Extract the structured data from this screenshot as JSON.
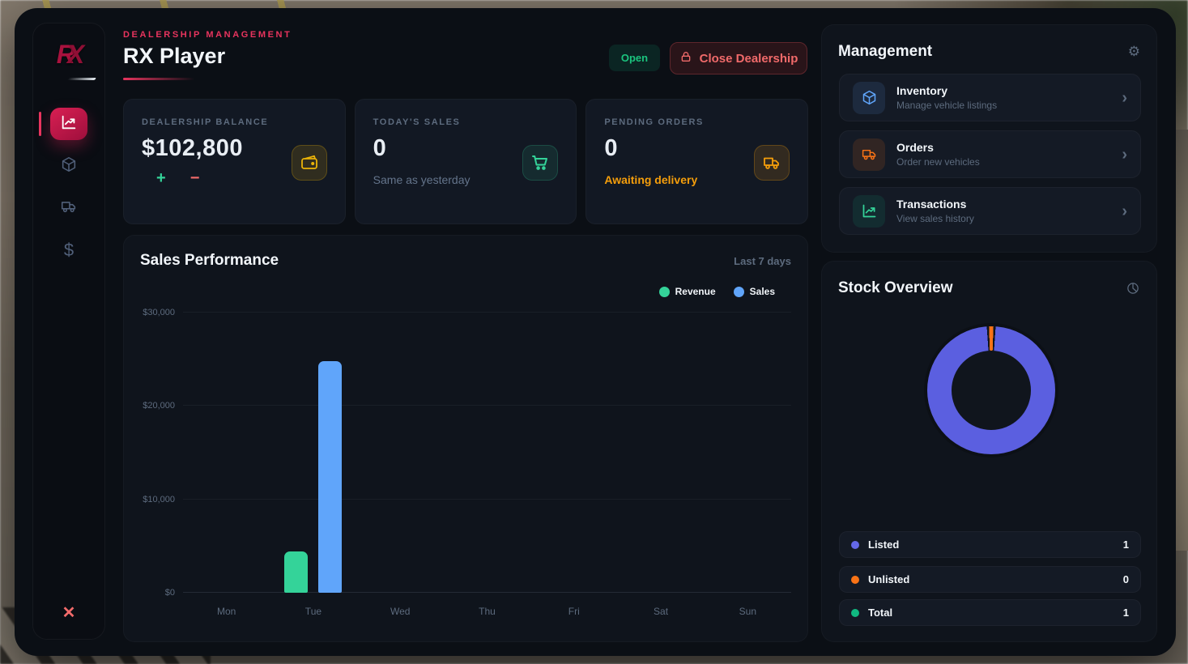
{
  "header": {
    "breadcrumb": "DEALERSHIP MANAGEMENT",
    "title": "RX Player",
    "status_badge": "Open",
    "close_button": "Close Dealership"
  },
  "sidebar": {
    "logo_r": "R",
    "logo_x": "X",
    "items": [
      {
        "id": "dashboard",
        "icon": "chart-line-icon",
        "active": true
      },
      {
        "id": "inventory",
        "icon": "cube-icon",
        "active": false
      },
      {
        "id": "orders",
        "icon": "truck-icon",
        "active": false
      },
      {
        "id": "transactions",
        "icon": "dollar-icon",
        "active": false
      }
    ],
    "dollar_glyph": "$",
    "close_label": "✕"
  },
  "stats": [
    {
      "label": "DEALERSHIP BALANCE",
      "value": "$102,800",
      "icon": "wallet-icon",
      "actions": {
        "plus": "+",
        "minus": "−"
      }
    },
    {
      "label": "TODAY'S SALES",
      "value": "0",
      "subtitle": "Same as yesterday",
      "icon": "cart-icon"
    },
    {
      "label": "PENDING ORDERS",
      "value": "0",
      "subtitle": "Awaiting delivery",
      "icon": "truck-icon"
    }
  ],
  "management": {
    "title": "Management",
    "gear_glyph": "⚙",
    "items": [
      {
        "title": "Inventory",
        "subtitle": "Manage vehicle listings",
        "icon": "cube-icon",
        "accent": "#60a5fa"
      },
      {
        "title": "Orders",
        "subtitle": "Order new vehicles",
        "icon": "truck-icon",
        "accent": "#f97316"
      },
      {
        "title": "Transactions",
        "subtitle": "View sales history",
        "icon": "chart-line-icon",
        "accent": "#34d399"
      }
    ],
    "chevron_glyph": "›"
  },
  "stock": {
    "title": "Stock Overview",
    "legend": [
      {
        "label": "Listed",
        "value": "1",
        "color": "#6468e8"
      },
      {
        "label": "Unlisted",
        "value": "0",
        "color": "#f97316"
      },
      {
        "label": "Total",
        "value": "1",
        "color": "#10b981"
      }
    ]
  },
  "chart_data": [
    {
      "type": "bar",
      "title": "Sales Performance",
      "period": "Last 7 days",
      "categories": [
        "Mon",
        "Tue",
        "Wed",
        "Thu",
        "Fri",
        "Sat",
        "Sun"
      ],
      "series": [
        {
          "name": "Revenue",
          "color": "#34d399",
          "values": [
            0,
            4400,
            0,
            0,
            0,
            0,
            0
          ]
        },
        {
          "name": "Sales",
          "color": "#60a5fa",
          "values": [
            0,
            24800,
            0,
            0,
            0,
            0,
            0
          ]
        }
      ],
      "ylim": [
        0,
        30000
      ],
      "yticks": [
        "$0",
        "$10,000",
        "$20,000",
        "$30,000"
      ],
      "grid": true,
      "legend_position": "top-right"
    },
    {
      "type": "pie",
      "donut": true,
      "title": "Stock Overview",
      "labels": [
        "Listed",
        "Unlisted",
        "Total"
      ],
      "values": [
        1,
        0,
        1
      ],
      "colors": [
        "#5b5fe0",
        "#f97316",
        "#10b981"
      ],
      "visual_segments": [
        {
          "color": "#f97316",
          "start_deg": -2,
          "end_deg": 2
        },
        {
          "color": "#5b5fe0",
          "start_deg": 4,
          "end_deg": 356
        }
      ],
      "gap_color": "#10151d"
    }
  ]
}
